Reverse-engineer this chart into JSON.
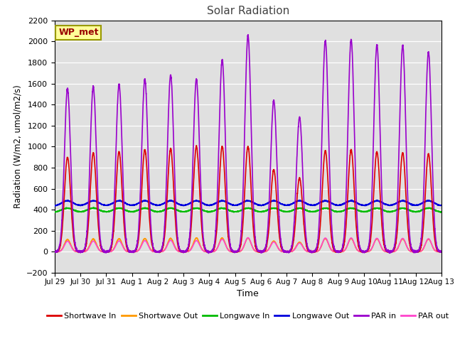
{
  "title": "Solar Radiation",
  "xlabel": "Time",
  "ylabel": "Radiation (W/m2, umol/m2/s)",
  "ylim": [
    -200,
    2200
  ],
  "yticks": [
    -200,
    0,
    200,
    400,
    600,
    800,
    1000,
    1200,
    1400,
    1600,
    1800,
    2000,
    2200
  ],
  "n_days": 15,
  "colors": {
    "shortwave_in": "#dd0000",
    "shortwave_out": "#ff9900",
    "longwave_in": "#00bb00",
    "longwave_out": "#0000dd",
    "par_in": "#9900cc",
    "par_out": "#ff44cc"
  },
  "bg_color": "#e0e0e0",
  "annotation_text": "WP_met",
  "annotation_facecolor": "#ffff99",
  "annotation_edgecolor": "#999900",
  "annotation_textcolor": "#990000"
}
